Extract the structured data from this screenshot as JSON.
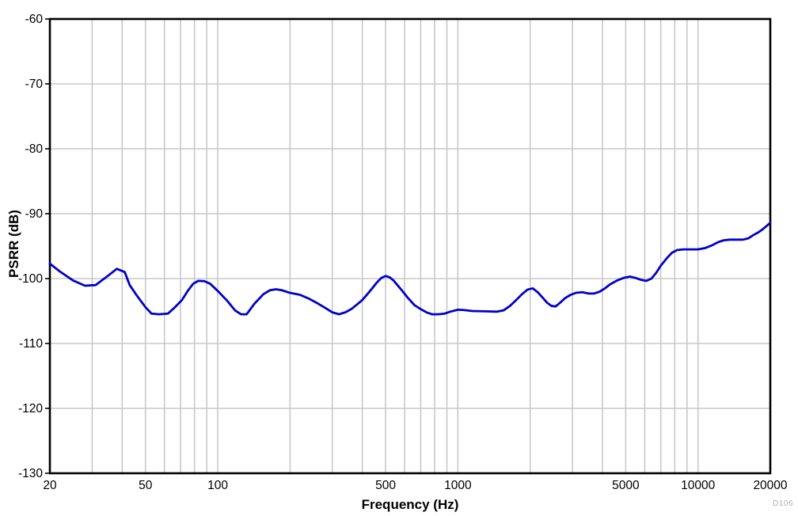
{
  "figure": {
    "background": "#FFFFFF",
    "id_label": "D106",
    "id_label_color": "#A9AEB7"
  },
  "chart_data": {
    "type": "line",
    "title": "",
    "xlabel": "Frequency (Hz)",
    "ylabel": "PSRR (dB)",
    "x_scale": "log",
    "xlim": [
      20,
      20000
    ],
    "ylim": [
      -130,
      -60
    ],
    "grid": true,
    "legend": "none",
    "colors": {
      "curve": "#0000CC",
      "grid": "#C8C8C8",
      "axis": "#000000",
      "tick_text": "#000000"
    },
    "x_tick_values": [
      20,
      50,
      100,
      500,
      1000,
      5000,
      10000,
      20000
    ],
    "x_tick_labels": [
      "20",
      "50",
      "100",
      "500",
      "1000",
      "5000",
      "10000",
      "20000"
    ],
    "x_gridline_values": [
      20,
      30,
      40,
      50,
      60,
      70,
      80,
      90,
      100,
      200,
      300,
      400,
      500,
      600,
      700,
      800,
      900,
      1000,
      2000,
      3000,
      4000,
      5000,
      6000,
      7000,
      8000,
      9000,
      10000,
      20000
    ],
    "y_tick_values": [
      -60,
      -70,
      -80,
      -90,
      -100,
      -110,
      -120,
      -130
    ],
    "y_tick_labels": [
      "-60",
      "-70",
      "-80",
      "-90",
      "-100",
      "-110",
      "-120",
      "-130"
    ],
    "series": [
      {
        "name": "PSRR",
        "color": "#0000CC",
        "points": [
          [
            20,
            -97.7
          ],
          [
            22,
            -98.9
          ],
          [
            25,
            -100.3
          ],
          [
            28,
            -101.1
          ],
          [
            31,
            -101.0
          ],
          [
            34,
            -99.9
          ],
          [
            38,
            -98.5
          ],
          [
            41,
            -99.0
          ],
          [
            43,
            -101.0
          ],
          [
            46,
            -102.6
          ],
          [
            50,
            -104.4
          ],
          [
            53,
            -105.4
          ],
          [
            57,
            -105.5
          ],
          [
            62,
            -105.4
          ],
          [
            66,
            -104.5
          ],
          [
            71,
            -103.3
          ],
          [
            75,
            -101.9
          ],
          [
            79,
            -100.8
          ],
          [
            83,
            -100.35
          ],
          [
            88,
            -100.4
          ],
          [
            93,
            -100.8
          ],
          [
            100,
            -101.9
          ],
          [
            110,
            -103.5
          ],
          [
            118,
            -104.9
          ],
          [
            125,
            -105.5
          ],
          [
            132,
            -105.5
          ],
          [
            142,
            -103.9
          ],
          [
            155,
            -102.4
          ],
          [
            165,
            -101.8
          ],
          [
            175,
            -101.65
          ],
          [
            185,
            -101.8
          ],
          [
            200,
            -102.2
          ],
          [
            220,
            -102.5
          ],
          [
            240,
            -103.1
          ],
          [
            260,
            -103.8
          ],
          [
            280,
            -104.5
          ],
          [
            300,
            -105.2
          ],
          [
            320,
            -105.5
          ],
          [
            340,
            -105.2
          ],
          [
            360,
            -104.7
          ],
          [
            380,
            -104.0
          ],
          [
            400,
            -103.3
          ],
          [
            420,
            -102.4
          ],
          [
            440,
            -101.5
          ],
          [
            460,
            -100.6
          ],
          [
            480,
            -99.9
          ],
          [
            500,
            -99.6
          ],
          [
            520,
            -99.8
          ],
          [
            540,
            -100.3
          ],
          [
            560,
            -101.0
          ],
          [
            590,
            -102.0
          ],
          [
            620,
            -103.0
          ],
          [
            660,
            -104.1
          ],
          [
            700,
            -104.7
          ],
          [
            740,
            -105.2
          ],
          [
            780,
            -105.5
          ],
          [
            830,
            -105.5
          ],
          [
            880,
            -105.4
          ],
          [
            930,
            -105.1
          ],
          [
            1000,
            -104.8
          ],
          [
            1060,
            -104.85
          ],
          [
            1150,
            -105.0
          ],
          [
            1300,
            -105.05
          ],
          [
            1450,
            -105.1
          ],
          [
            1550,
            -104.9
          ],
          [
            1650,
            -104.2
          ],
          [
            1750,
            -103.3
          ],
          [
            1850,
            -102.4
          ],
          [
            1950,
            -101.7
          ],
          [
            2050,
            -101.5
          ],
          [
            2150,
            -102.1
          ],
          [
            2250,
            -102.9
          ],
          [
            2350,
            -103.7
          ],
          [
            2450,
            -104.2
          ],
          [
            2550,
            -104.3
          ],
          [
            2650,
            -103.8
          ],
          [
            2800,
            -103.0
          ],
          [
            2950,
            -102.5
          ],
          [
            3100,
            -102.2
          ],
          [
            3300,
            -102.1
          ],
          [
            3500,
            -102.3
          ],
          [
            3700,
            -102.3
          ],
          [
            3900,
            -102.0
          ],
          [
            4100,
            -101.5
          ],
          [
            4300,
            -100.9
          ],
          [
            4600,
            -100.3
          ],
          [
            4900,
            -99.9
          ],
          [
            5200,
            -99.7
          ],
          [
            5500,
            -99.9
          ],
          [
            5800,
            -100.2
          ],
          [
            6100,
            -100.35
          ],
          [
            6400,
            -100.0
          ],
          [
            6700,
            -99.1
          ],
          [
            7000,
            -98.0
          ],
          [
            7400,
            -96.9
          ],
          [
            7800,
            -96.0
          ],
          [
            8200,
            -95.6
          ],
          [
            8700,
            -95.5
          ],
          [
            9300,
            -95.5
          ],
          [
            10000,
            -95.5
          ],
          [
            10700,
            -95.3
          ],
          [
            11400,
            -94.9
          ],
          [
            12100,
            -94.4
          ],
          [
            12800,
            -94.1
          ],
          [
            13600,
            -94.0
          ],
          [
            14500,
            -94.0
          ],
          [
            15400,
            -94.0
          ],
          [
            16200,
            -93.8
          ],
          [
            17000,
            -93.3
          ],
          [
            17800,
            -92.9
          ],
          [
            18600,
            -92.4
          ],
          [
            19300,
            -91.9
          ],
          [
            20000,
            -91.4
          ]
        ]
      }
    ]
  }
}
